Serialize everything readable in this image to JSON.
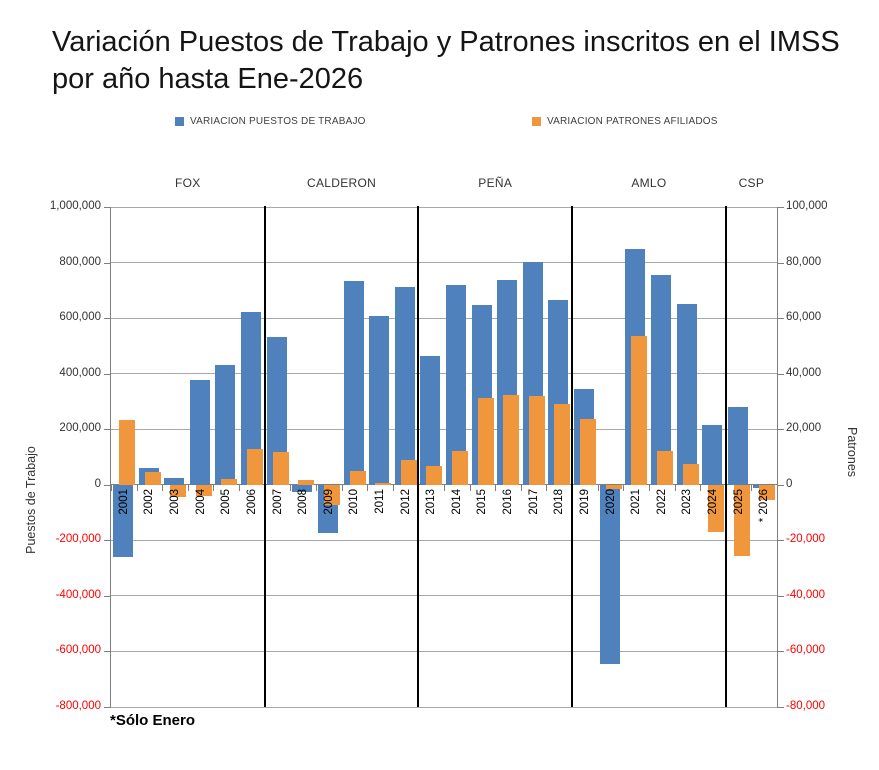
{
  "title": "Variación Puestos de Trabajo y Patrones inscritos en el IMSS por año hasta Ene-2026",
  "footnote": "*Sólo Enero",
  "legend": [
    {
      "label": "VARIACION PUESTOS DE TRABAJO",
      "color": "#4F81BD"
    },
    {
      "label": "VARIACION PATRONES AFILIADOS",
      "color": "#F0963C"
    }
  ],
  "chart_data": {
    "type": "bar",
    "categories": [
      2001,
      2002,
      2003,
      2004,
      2005,
      2006,
      2007,
      2008,
      2009,
      2010,
      2011,
      2012,
      2013,
      2014,
      2015,
      2016,
      2017,
      2018,
      2019,
      2020,
      2021,
      2022,
      2023,
      2024,
      2025,
      2026
    ],
    "category_labels": [
      "2001",
      "2002",
      "2003",
      "2004",
      "2005",
      "2006",
      "2007",
      "2008",
      "2009",
      "2010",
      "2011",
      "2012",
      "2013",
      "2014",
      "2015",
      "2016",
      "2017",
      "2018",
      "2019",
      "2020",
      "2021",
      "2022",
      "2023",
      "2024",
      "2025",
      "* 2026"
    ],
    "series": [
      {
        "name": "VARIACION PUESTOS DE TRABAJO",
        "axis": "left",
        "color": "#4F81BD",
        "values": [
          -259000,
          61000,
          26000,
          378000,
          430000,
          622000,
          532000,
          -26000,
          -172000,
          733000,
          608000,
          712000,
          465000,
          720000,
          647000,
          737000,
          802000,
          664000,
          345000,
          -645000,
          850000,
          755000,
          650000,
          215000,
          280000,
          -10000
        ]
      },
      {
        "name": "VARIACION PATRONES AFILIADOS",
        "axis": "right",
        "color": "#F0963C",
        "values": [
          23400,
          4500,
          -4500,
          -4000,
          2000,
          12800,
          11800,
          1800,
          -7300,
          5100,
          700,
          8800,
          6700,
          12000,
          31200,
          32300,
          32000,
          29000,
          23700,
          -1500,
          53500,
          12000,
          7500,
          -17000,
          -25600,
          -5500
        ]
      }
    ],
    "axes": {
      "left": {
        "title": "Puestos de Trabajo",
        "min": -800000,
        "max": 1000000,
        "step": 200000
      },
      "right": {
        "title": "Patrones",
        "min": -80000,
        "max": 100000,
        "step": 20000
      }
    },
    "negative_tick_color": "#FF0000",
    "grid": true,
    "legend_position": "top",
    "periods": [
      {
        "label": "FOX",
        "start_year": 2001,
        "end_year": 2006
      },
      {
        "label": "CALDERON",
        "start_year": 2007,
        "end_year": 2012
      },
      {
        "label": "PEÑA",
        "start_year": 2013,
        "end_year": 2018
      },
      {
        "label": "AMLO",
        "start_year": 2019,
        "end_year": 2024
      },
      {
        "label": "CSP",
        "start_year": 2025,
        "end_year": 2026
      }
    ]
  }
}
